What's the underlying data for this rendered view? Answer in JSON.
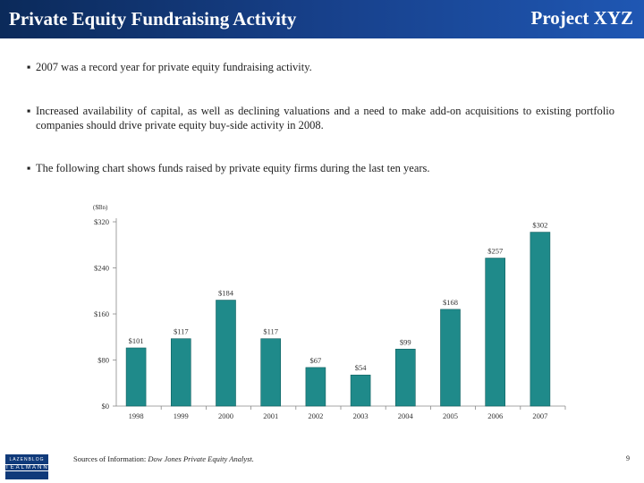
{
  "header": {
    "title": "Private Equity Fundraising Activity",
    "project": "Project XYZ"
  },
  "bullets": [
    "2007 was a record year for private equity fundraising activity.",
    "Increased availability of capital, as well as declining valuations and a need to make add-on acquisitions to existing portfolio companies should drive private equity buy-side activity in 2008.",
    "The following chart shows funds raised by private equity firms during the last ten years."
  ],
  "chart_data": {
    "type": "bar",
    "unit_label": "($Bn)",
    "categories": [
      "1998",
      "1999",
      "2000",
      "2001",
      "2002",
      "2003",
      "2004",
      "2005",
      "2006",
      "2007"
    ],
    "values": [
      101,
      117,
      184,
      117,
      67,
      54,
      99,
      168,
      257,
      302
    ],
    "data_labels": [
      "$101",
      "$117",
      "$184",
      "$117",
      "$67",
      "$54",
      "$99",
      "$168",
      "$257",
      "$302"
    ],
    "y_ticks": [
      0,
      80,
      160,
      240,
      320
    ],
    "y_tick_labels": [
      "$0",
      "$80",
      "$160",
      "$240",
      "$320"
    ],
    "ylim": [
      0,
      320
    ],
    "bar_color": "#1f8a8a"
  },
  "footer": {
    "logo_line1": "LAZENBLOG",
    "logo_line2": "TEALMANN",
    "source_prefix": "Sources of Information: ",
    "source_publication": "Dow Jones Private Equity Analyst.",
    "page_number": "9"
  }
}
